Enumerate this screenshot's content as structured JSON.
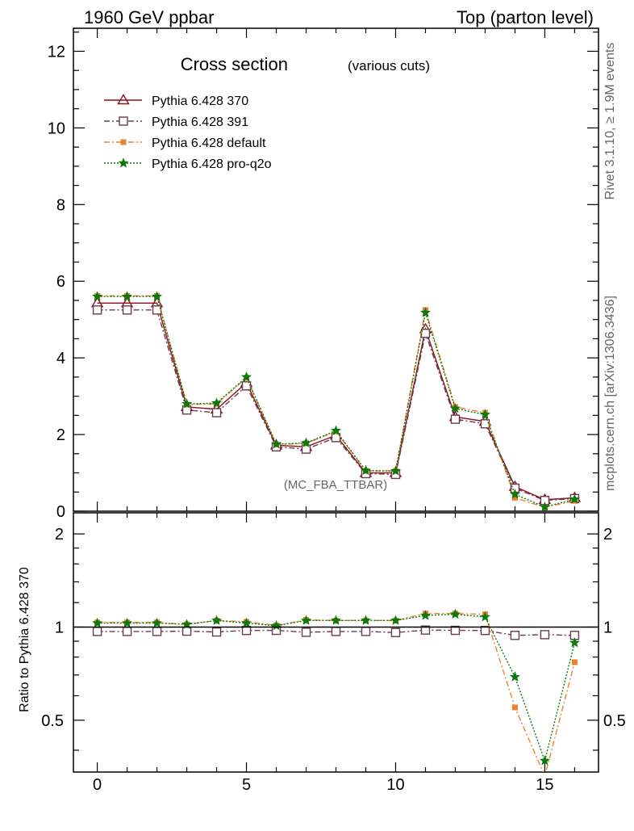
{
  "header": {
    "left": "1960 GeV ppbar",
    "right": "Top (parton level)"
  },
  "side_labels": {
    "rivet": "Rivet 3.1.10, ≥ 1.9M events",
    "mcplots": "mcplots.cern.ch [arXiv:1306.3436]"
  },
  "plot_title": {
    "main": "Cross section",
    "sub": "(various cuts)"
  },
  "analysis_label": "(MC_FBA_TTBAR)",
  "chart_data": [
    {
      "type": "line",
      "panel": "main",
      "xlim": [
        -0.8,
        16.8
      ],
      "ylim": [
        0,
        12.6
      ],
      "xticks": [
        0,
        5,
        10,
        15
      ],
      "yticks": [
        0,
        2,
        4,
        6,
        8,
        10,
        12
      ],
      "ytick_labels": [
        "0",
        "2",
        "4",
        "6",
        "8",
        "10",
        "12"
      ],
      "xlabel": "",
      "ylabel": "",
      "legend_position": "top-left",
      "x": [
        0,
        1,
        2,
        3,
        4,
        5,
        6,
        7,
        8,
        9,
        10,
        11,
        12,
        13,
        14,
        15,
        16
      ],
      "series": [
        {
          "name": "Pythia 6.428 370",
          "color": "#8b0f1e",
          "marker": "triangle-open",
          "line": "solid",
          "values": [
            5.43,
            5.43,
            5.43,
            2.72,
            2.66,
            3.35,
            1.72,
            1.68,
            1.98,
            1.0,
            1.0,
            4.75,
            2.46,
            2.34,
            0.64,
            0.3,
            0.35
          ]
        },
        {
          "name": "Pythia 6.428 391",
          "color": "#6b3a4e",
          "marker": "square-open",
          "line": "dashdot",
          "values": [
            5.25,
            5.25,
            5.25,
            2.64,
            2.57,
            3.27,
            1.68,
            1.62,
            1.92,
            0.98,
            0.96,
            4.64,
            2.4,
            2.28,
            0.6,
            0.28,
            0.33
          ]
        },
        {
          "name": "Pythia 6.428 default",
          "color": "#f08030",
          "marker": "square-filled",
          "line": "dashdot",
          "values": [
            5.62,
            5.62,
            5.62,
            2.78,
            2.8,
            3.48,
            1.74,
            1.77,
            2.08,
            1.05,
            1.05,
            5.25,
            2.72,
            2.57,
            0.35,
            0.1,
            0.27
          ]
        },
        {
          "name": "Pythia 6.428 pro-q2o",
          "color": "#0a7a0a",
          "marker": "star",
          "line": "dotted",
          "values": [
            5.6,
            5.6,
            5.6,
            2.8,
            2.82,
            3.5,
            1.75,
            1.78,
            2.1,
            1.06,
            1.05,
            5.18,
            2.68,
            2.52,
            0.44,
            0.11,
            0.31
          ]
        }
      ]
    },
    {
      "type": "line",
      "panel": "ratio",
      "xlim": [
        -0.8,
        16.8
      ],
      "ylim": [
        0.34,
        2.34
      ],
      "xticks": [
        0,
        5,
        10,
        15
      ],
      "xtick_labels": [
        "0",
        "5",
        "10",
        "15"
      ],
      "yticks": [
        0.5,
        1,
        2
      ],
      "ytick_labels": [
        "0.5",
        "1",
        "2"
      ],
      "ylabel": "Ratio to Pythia 6.428 370",
      "reference_line": 1,
      "x": [
        0,
        1,
        2,
        3,
        4,
        5,
        6,
        7,
        8,
        9,
        10,
        11,
        12,
        13,
        14,
        15,
        16
      ],
      "series": [
        {
          "name": "Pythia 6.428 391",
          "color": "#6b3a4e",
          "marker": "square-open",
          "line": "dashdot",
          "values": [
            0.968,
            0.968,
            0.968,
            0.97,
            0.964,
            0.975,
            0.976,
            0.962,
            0.968,
            0.968,
            0.96,
            0.978,
            0.976,
            0.975,
            0.94,
            0.945,
            0.94
          ]
        },
        {
          "name": "Pythia 6.428 default",
          "color": "#f08030",
          "marker": "square-filled",
          "line": "dashdot",
          "values": [
            1.035,
            1.035,
            1.035,
            1.02,
            1.05,
            1.04,
            1.012,
            1.055,
            1.05,
            1.05,
            1.05,
            1.106,
            1.106,
            1.1,
            0.55,
            0.33,
            0.77
          ]
        },
        {
          "name": "Pythia 6.428 pro-q2o",
          "color": "#0a7a0a",
          "marker": "star",
          "line": "dotted",
          "values": [
            1.03,
            1.03,
            1.03,
            1.02,
            1.05,
            1.03,
            1.01,
            1.05,
            1.05,
            1.05,
            1.05,
            1.09,
            1.1,
            1.078,
            0.69,
            0.37,
            0.89
          ]
        }
      ]
    }
  ]
}
